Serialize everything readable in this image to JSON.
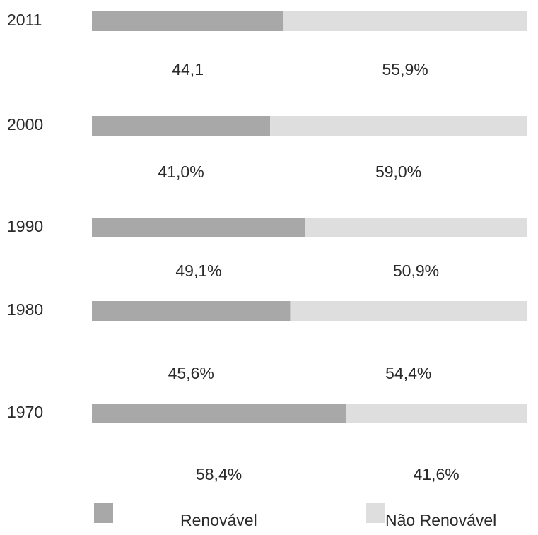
{
  "chart_data": {
    "type": "stacked-bar-horizontal",
    "categories": [
      "2011",
      "2000",
      "1990",
      "1980",
      "1970"
    ],
    "xlim": [
      0,
      100
    ],
    "series": [
      {
        "name": "Renovável",
        "color": "#a8a8a8",
        "values": [
          44.1,
          41.0,
          49.1,
          45.6,
          58.4
        ],
        "value_labels": [
          "44,1",
          "41,0%",
          "49,1%",
          "45,6%",
          "58,4%"
        ]
      },
      {
        "name": "Não Renovável",
        "color": "#dedede",
        "values": [
          55.9,
          59.0,
          50.9,
          54.4,
          41.6
        ],
        "value_labels": [
          "55,9%",
          "59,0%",
          "50,9%",
          "54,4%",
          "41,6%"
        ]
      }
    ]
  }
}
